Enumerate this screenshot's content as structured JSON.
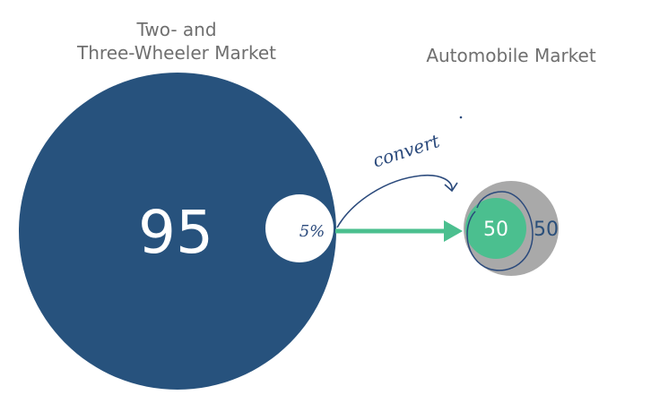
{
  "left_market": {
    "label_line1": "Two- and",
    "label_line2": "Three-Wheeler Market",
    "value": "95",
    "cutout_value": "5%",
    "circle_color": "#27527d"
  },
  "right_market": {
    "label": "Automobile Market",
    "inner_value": "50",
    "outer_value": "50",
    "inner_color": "#4bbf8f",
    "outer_color": "#a9a9a9"
  },
  "annotations": {
    "cutout_handwritten": "5%",
    "arrow_handwritten": "convert",
    "arrow_color": "#4bbf8f"
  }
}
